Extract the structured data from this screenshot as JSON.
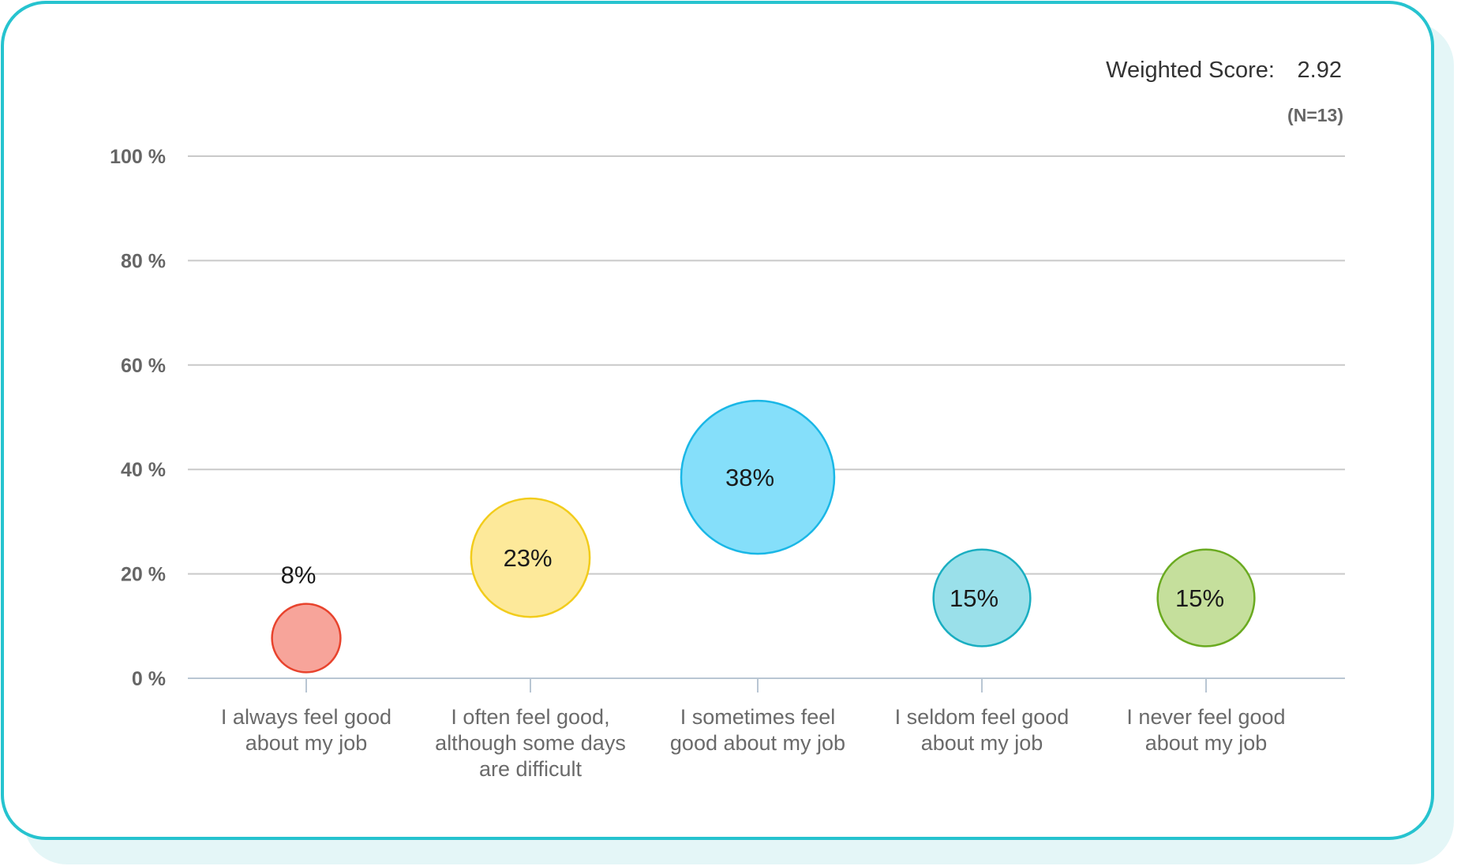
{
  "header": {
    "weighted_score_label": "Weighted Score:",
    "weighted_score_value": "2.92",
    "sample_size": "(N=13)"
  },
  "chart_data": {
    "type": "scatter",
    "ylim": [
      0,
      100
    ],
    "yticks": [
      0,
      20,
      40,
      60,
      80,
      100
    ],
    "ytick_labels": [
      "0 %",
      "20 %",
      "40 %",
      "60 %",
      "80 %",
      "100 %"
    ],
    "grid": true,
    "categories": [
      [
        "I always feel good",
        "about my job"
      ],
      [
        "I often feel good,",
        "although some days",
        "are difficult"
      ],
      [
        "I sometimes feel",
        "good about my job"
      ],
      [
        "I seldom feel good",
        "about my job"
      ],
      [
        "I never feel good",
        "about my job"
      ]
    ],
    "values": [
      7.7,
      23.1,
      38.5,
      15.4,
      15.4
    ],
    "labels": [
      "8%",
      "23%",
      "38%",
      "15%",
      "15%"
    ],
    "colors": [
      {
        "fill": "#f7a49a",
        "stroke": "#e8432d"
      },
      {
        "fill": "#fde99a",
        "stroke": "#f2cc1c"
      },
      {
        "fill": "#85dffa",
        "stroke": "#1ab7e6"
      },
      {
        "fill": "#9ae0ea",
        "stroke": "#1aaec1"
      },
      {
        "fill": "#c5df9c",
        "stroke": "#6aaa20"
      }
    ]
  }
}
